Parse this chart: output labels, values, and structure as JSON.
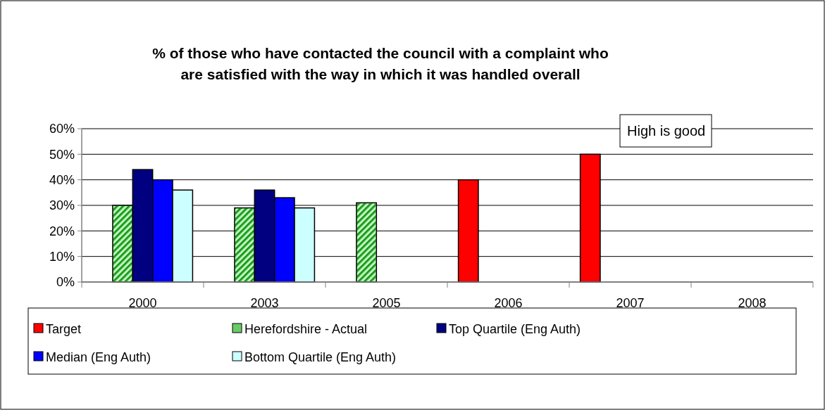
{
  "chart_data": {
    "type": "bar",
    "title": "% of those who have contacted the council with a complaint who\nare satisfied with the way in which it was handled overall",
    "categories": [
      "2000",
      "2003",
      "2005",
      "2006",
      "2007",
      "2008"
    ],
    "series": [
      {
        "name": "Target",
        "color": "#ff0000",
        "values": [
          null,
          null,
          null,
          40,
          50,
          null
        ]
      },
      {
        "name": "Herefordshire - Actual",
        "color": "#66cc66",
        "values": [
          30,
          29,
          31,
          null,
          null,
          null
        ]
      },
      {
        "name": "Top Quartile (Eng Auth)",
        "color": "#000080",
        "values": [
          44,
          36,
          null,
          null,
          null,
          null
        ]
      },
      {
        "name": "Median (Eng Auth)",
        "color": "#0000ff",
        "values": [
          40,
          33,
          null,
          null,
          null,
          null
        ]
      },
      {
        "name": "Bottom Quartile (Eng Auth)",
        "color": "#ccffff",
        "values": [
          36,
          29,
          null,
          null,
          null,
          null
        ]
      }
    ],
    "ylim": [
      0,
      60
    ],
    "yticks": [
      {
        "value": 0,
        "label": "0%"
      },
      {
        "value": 10,
        "label": "10%"
      },
      {
        "value": 20,
        "label": "20%"
      },
      {
        "value": 30,
        "label": "30%"
      },
      {
        "value": 40,
        "label": "40%"
      },
      {
        "value": 50,
        "label": "50%"
      },
      {
        "value": 60,
        "label": "60%"
      }
    ],
    "grid": "y",
    "legend": "bottom",
    "annotations": [
      "High is good"
    ]
  }
}
